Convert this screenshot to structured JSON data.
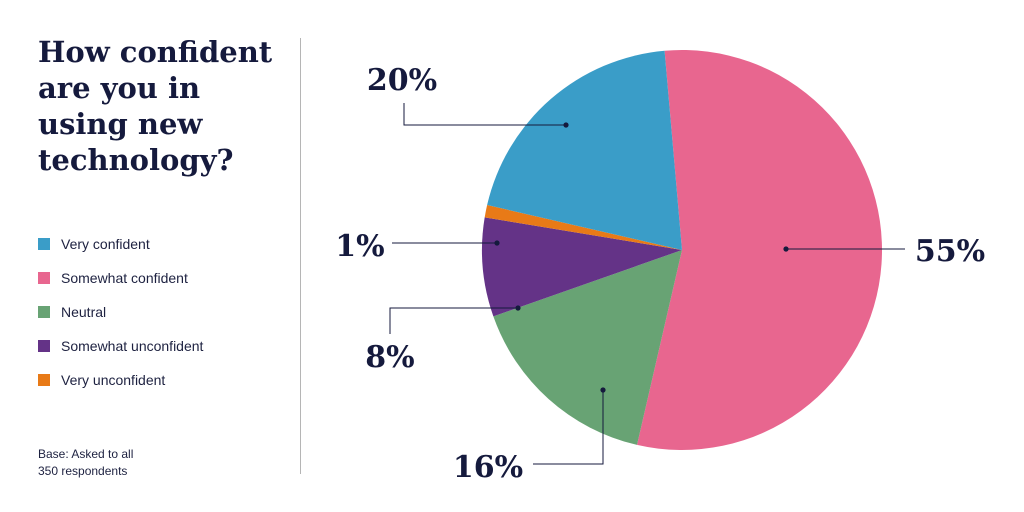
{
  "title_lines": [
    "How confident",
    "are you in",
    "using new",
    "technology?"
  ],
  "base_note_lines": [
    "Base: Asked to all",
    "350 respondents"
  ],
  "chart_data": {
    "type": "pie",
    "title": "How confident are you in using new technology?",
    "slices": [
      {
        "label": "Somewhat confident",
        "value": 55,
        "value_label": "55%",
        "color": "#e8668f"
      },
      {
        "label": "Neutral",
        "value": 16,
        "value_label": "16%",
        "color": "#68a374"
      },
      {
        "label": "Somewhat unconfident",
        "value": 8,
        "value_label": "8%",
        "color": "#643387"
      },
      {
        "label": "Very unconfident",
        "value": 1,
        "value_label": "1%",
        "color": "#e87a17"
      },
      {
        "label": "Very confident",
        "value": 20,
        "value_label": "20%",
        "color": "#3a9dc8"
      }
    ],
    "legend": [
      {
        "label": "Very confident",
        "color": "#3a9dc8"
      },
      {
        "label": "Somewhat confident",
        "color": "#e8668f"
      },
      {
        "label": "Neutral",
        "color": "#68a374"
      },
      {
        "label": "Somewhat unconfident",
        "color": "#643387"
      },
      {
        "label": "Very unconfident",
        "color": "#e87a17"
      }
    ],
    "legend_position": "left"
  }
}
